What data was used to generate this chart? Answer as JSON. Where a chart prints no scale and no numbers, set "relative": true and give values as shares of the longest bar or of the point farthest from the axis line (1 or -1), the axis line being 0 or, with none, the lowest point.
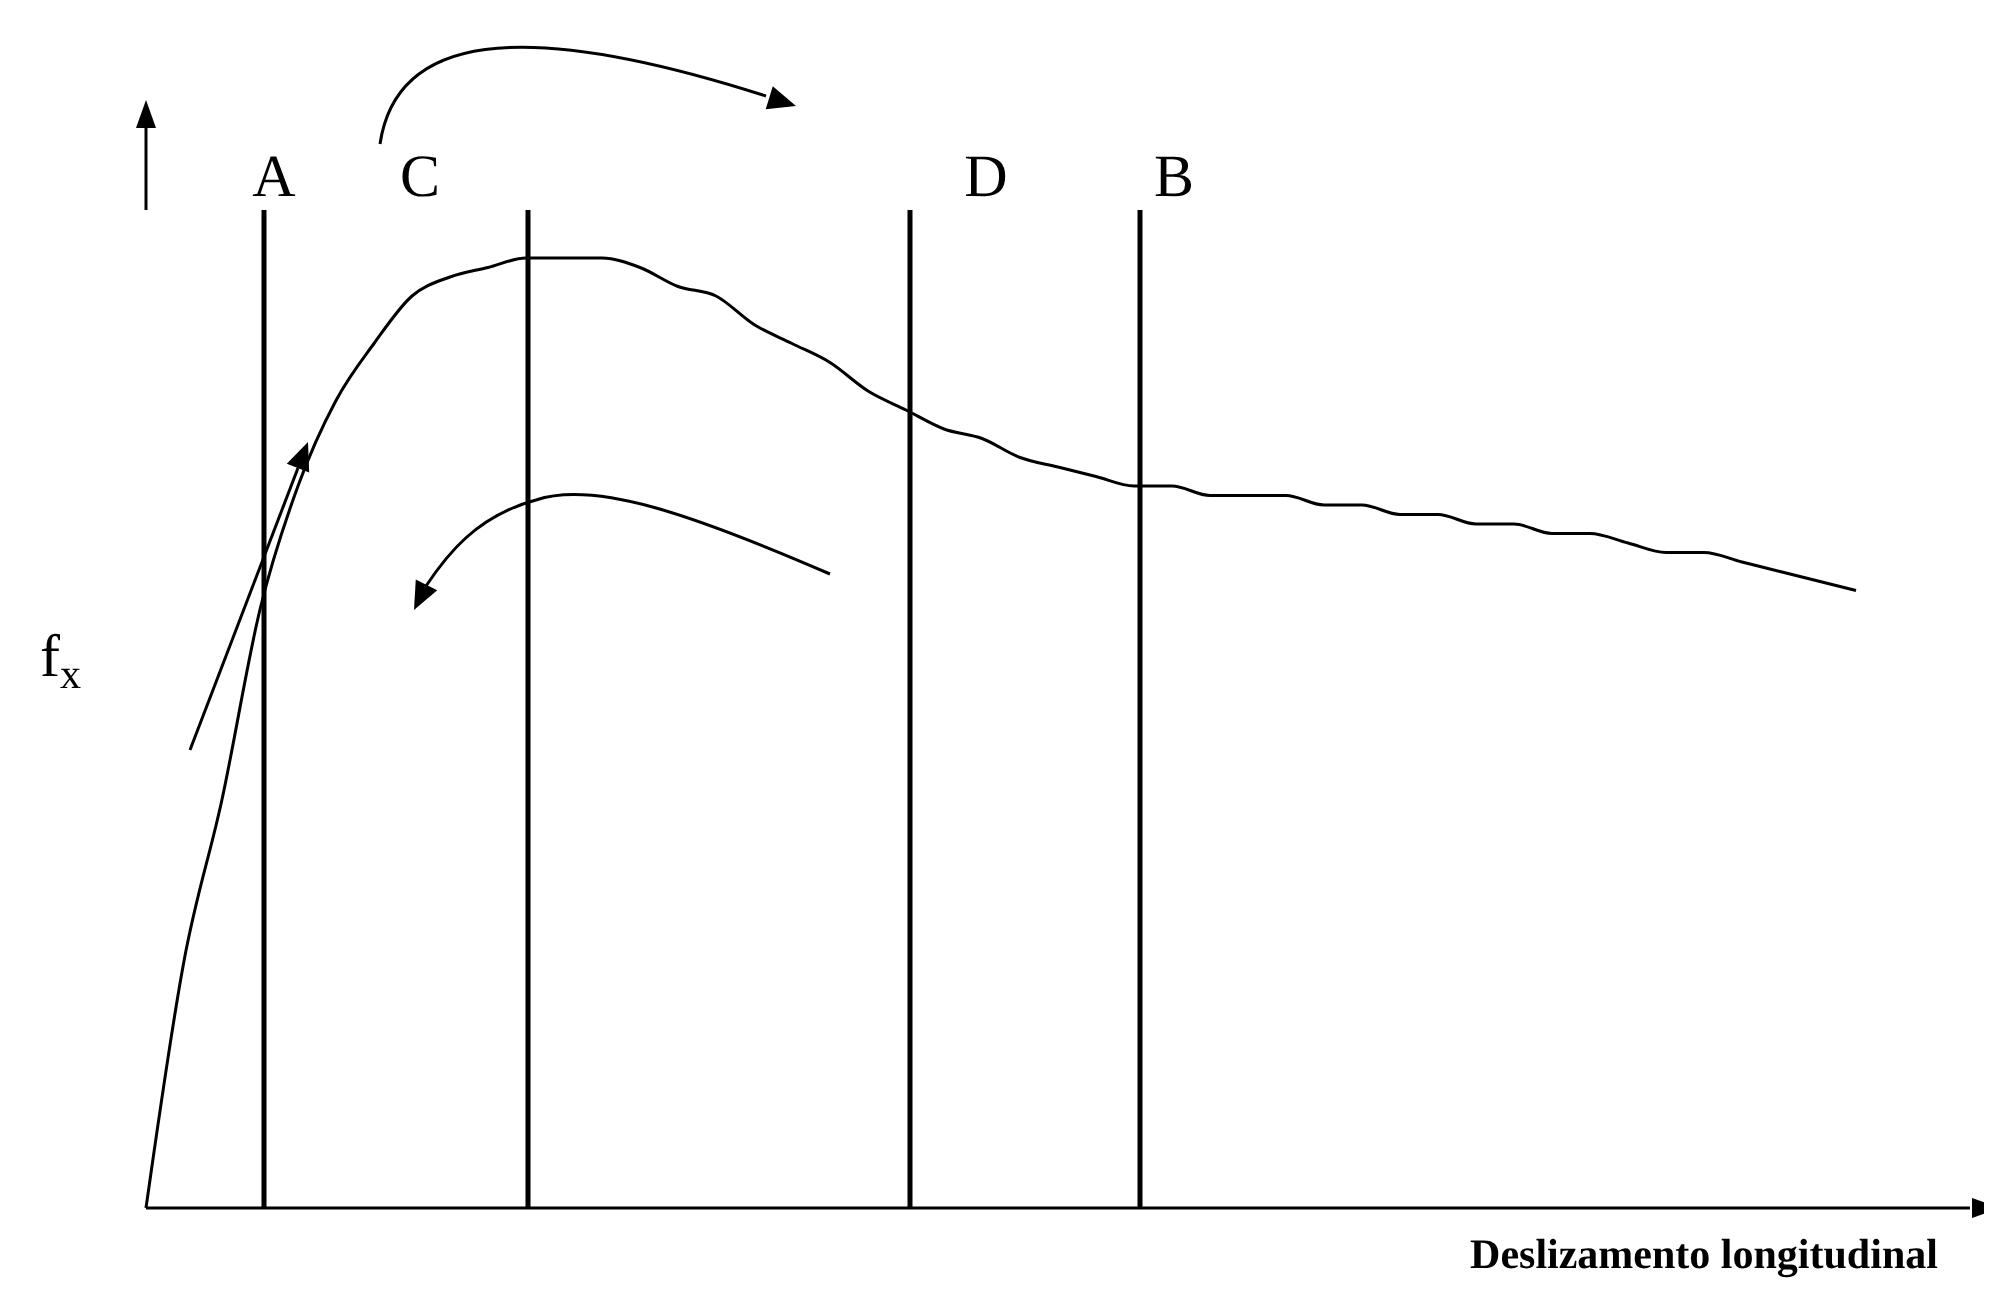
{
  "chart_data": {
    "type": "line",
    "relative": true,
    "xlabel": "Deslizamento longitudinal",
    "ylabel": "f$_{x}$",
    "categories": [
      null,
      null,
      null,
      null,
      null,
      null,
      null,
      null,
      null,
      null,
      null,
      null,
      null,
      null,
      null,
      null,
      null,
      null,
      null,
      null,
      null,
      null,
      null,
      null,
      null,
      null,
      null,
      null,
      null,
      null,
      null,
      null,
      null,
      null,
      null,
      null,
      null,
      null,
      null,
      null,
      null,
      null,
      null,
      null,
      null,
      null,
      null,
      null,
      null
    ],
    "series": [
      {
        "color": "#000000",
        "values": [
          0,
          0.26,
          0.43,
          0.63,
          0.76,
          0.85,
          0.91,
          0.96,
          0.98,
          0.99,
          1.0,
          1.0,
          1.0,
          0.99,
          0.97,
          0.96,
          0.93,
          0.91,
          0.89,
          0.86,
          0.84,
          0.82,
          0.81,
          0.79,
          0.78,
          0.77,
          0.76,
          0.76,
          0.75,
          0.75,
          0.75,
          0.74,
          0.74,
          0.73,
          0.73,
          0.72,
          0.72,
          0.71,
          0.71,
          0.7,
          0.69,
          0.69,
          0.68,
          0.67,
          0.66,
          0.65,
          null,
          null,
          null
        ]
      }
    ],
    "annotations": [
      "A",
      "C",
      "D",
      "B"
    ],
    "grid": "x",
    "marker": "none",
    "line_style": "solid"
  }
}
